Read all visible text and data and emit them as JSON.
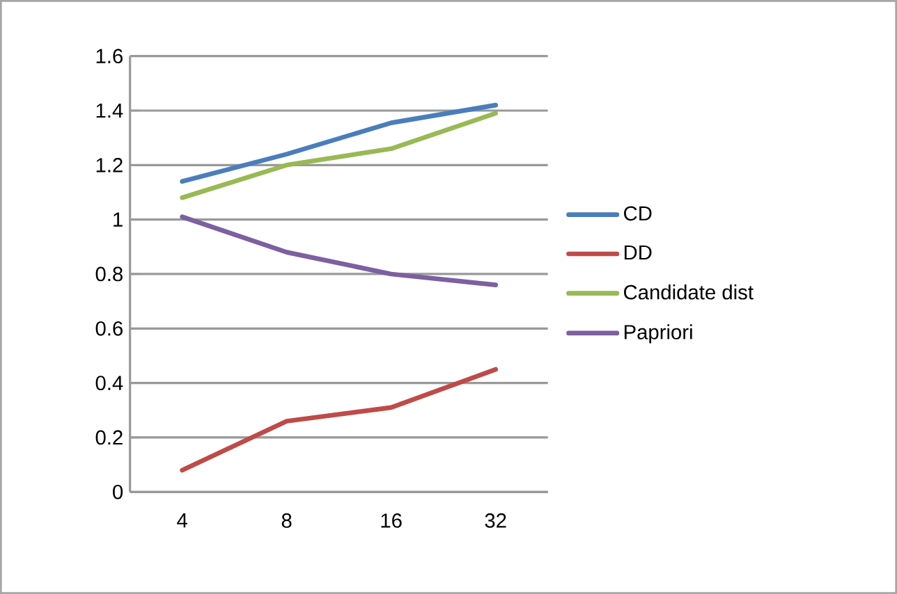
{
  "chart_data": {
    "type": "line",
    "categories": [
      "4",
      "8",
      "16",
      "32"
    ],
    "series": [
      {
        "name": "CD",
        "color": "#4a7ebb",
        "values": [
          1.14,
          1.24,
          1.355,
          1.42
        ]
      },
      {
        "name": "DD",
        "color": "#be4b48",
        "values": [
          0.08,
          0.26,
          0.31,
          0.45
        ]
      },
      {
        "name": "Candidate dist",
        "color": "#98b954",
        "values": [
          1.08,
          1.2,
          1.26,
          1.39
        ]
      },
      {
        "name": "Papriori",
        "color": "#7d60a0",
        "values": [
          1.01,
          0.88,
          0.8,
          0.76
        ]
      }
    ],
    "ylim": [
      0,
      1.6
    ],
    "yticks": [
      0,
      0.2,
      0.4,
      0.6,
      0.8,
      1,
      1.2,
      1.4,
      1.6
    ],
    "grid": "y",
    "legend": "right",
    "marker": "none"
  }
}
